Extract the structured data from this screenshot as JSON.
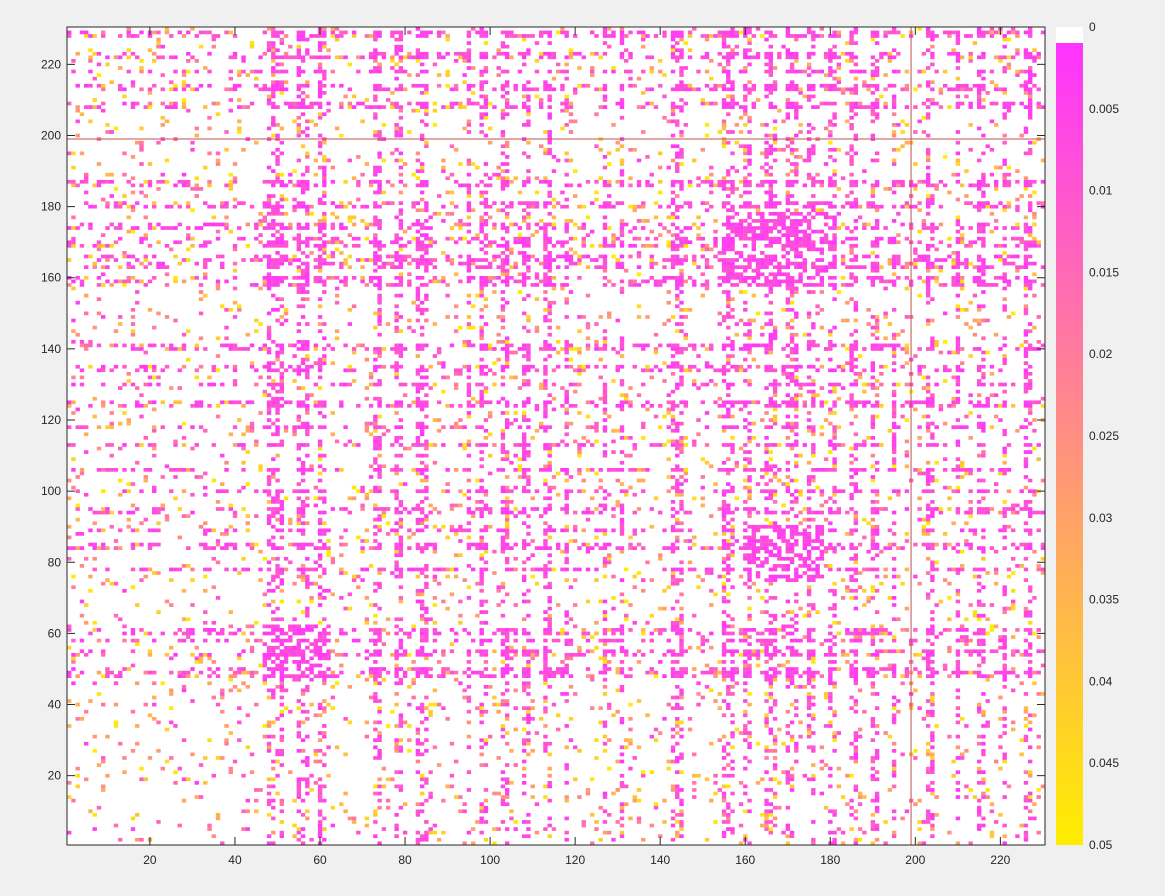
{
  "chart_data": {
    "type": "heatmap",
    "title": "",
    "xlabel": "",
    "ylabel": "",
    "matrix_size": [
      230,
      230
    ],
    "xlim": [
      0.5,
      230.5
    ],
    "ylim": [
      0.5,
      230.5
    ],
    "x_ticks": [
      20,
      40,
      60,
      80,
      100,
      120,
      140,
      160,
      180,
      200,
      220
    ],
    "y_ticks": [
      20,
      40,
      60,
      80,
      100,
      120,
      140,
      160,
      180,
      200,
      220
    ],
    "x_tick_labels": [
      "20",
      "40",
      "60",
      "80",
      "100",
      "120",
      "140",
      "160",
      "180",
      "200",
      "220"
    ],
    "y_tick_labels": [
      "20",
      "40",
      "60",
      "80",
      "100",
      "120",
      "140",
      "160",
      "180",
      "200",
      "220"
    ],
    "y_direction": "normal",
    "grid": false,
    "colormap": {
      "range": [
        0,
        0.05
      ],
      "zero_color": "#ffffff",
      "low_color": "#ff33ff",
      "high_color": "#ffee00",
      "ticks": [
        0,
        0.005,
        0.01,
        0.015,
        0.02,
        0.025,
        0.03,
        0.035,
        0.04,
        0.045,
        0.05
      ],
      "tick_labels": [
        "0",
        "0.005",
        "0.01",
        "0.015",
        "0.02",
        "0.025",
        "0.03",
        "0.035",
        "0.04",
        "0.045",
        "0.05"
      ],
      "direction": "reverse",
      "location": "right"
    },
    "reference_lines": [
      {
        "orientation": "horizontal",
        "value": 199,
        "color": "#c0504d"
      },
      {
        "orientation": "vertical",
        "value": 199,
        "color": "#c0504d"
      }
    ],
    "dense_blocks": [
      {
        "x_range": [
          47,
          62
        ],
        "y_range": [
          47,
          62
        ],
        "level": 0.003
      },
      {
        "x_range": [
          155,
          180
        ],
        "y_range": [
          158,
          178
        ],
        "level": 0.003
      },
      {
        "x_range": [
          160,
          178
        ],
        "y_range": [
          75,
          90
        ],
        "level": 0.003
      }
    ],
    "dense_columns": [
      48,
      49,
      50,
      51,
      55,
      56,
      57,
      60,
      61,
      73,
      74,
      78,
      79,
      83,
      84,
      85,
      95,
      98,
      99,
      103,
      104,
      108,
      109,
      113,
      114,
      118,
      127,
      131,
      143,
      144,
      145,
      155,
      156,
      157,
      160,
      161,
      165,
      166,
      167,
      170,
      171,
      172,
      175,
      176,
      180,
      181,
      185,
      186,
      190,
      191,
      195,
      203,
      204,
      210,
      215,
      216,
      221,
      226,
      227
    ],
    "dense_rows": [
      48,
      49,
      50,
      54,
      55,
      58,
      60,
      61,
      78,
      84,
      85,
      89,
      94,
      95,
      100,
      106,
      113,
      118,
      124,
      125,
      130,
      134,
      135,
      140,
      141,
      158,
      159,
      160,
      163,
      164,
      165,
      166,
      169,
      170,
      171,
      174,
      175,
      180,
      181,
      186,
      187,
      208,
      209,
      213,
      214,
      218,
      222,
      223,
      228,
      229
    ],
    "sparse_fill_fraction": 0.07,
    "random_seed": 20240517
  }
}
